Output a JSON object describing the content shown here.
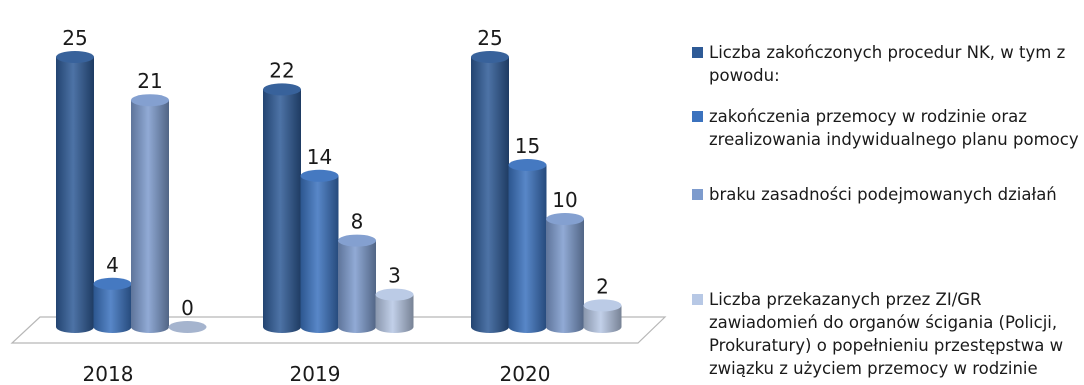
{
  "chart_data": {
    "type": "bar",
    "categories": [
      "2018",
      "2019",
      "2020"
    ],
    "series": [
      {
        "name": "Liczba zakończonych procedur NK, w tym z powodu:",
        "values": [
          25,
          22,
          25
        ]
      },
      {
        "name": "zakończenia przemocy w rodzinie oraz zrealizowania indywidualnego planu pomocy",
        "values": [
          4,
          14,
          15
        ]
      },
      {
        "name": "braku zasadności podejmowanych działań",
        "values": [
          21,
          8,
          10
        ]
      },
      {
        "name": "Liczba przekazanych przez ZI/GR zawiadomień do organów ścigania (Policji, Prokuratury) o popełnieniu przestępstwa w związku z użyciem przemocy w rodzinie",
        "values": [
          0,
          3,
          2
        ]
      }
    ],
    "ylim": [
      0,
      25
    ],
    "grid": false,
    "legend_position": "right",
    "style": "3d cylinder"
  },
  "colors": {
    "series": [
      "#2E5A96",
      "#3B72BE",
      "#7D9BCD",
      "#B7C8E5"
    ]
  }
}
